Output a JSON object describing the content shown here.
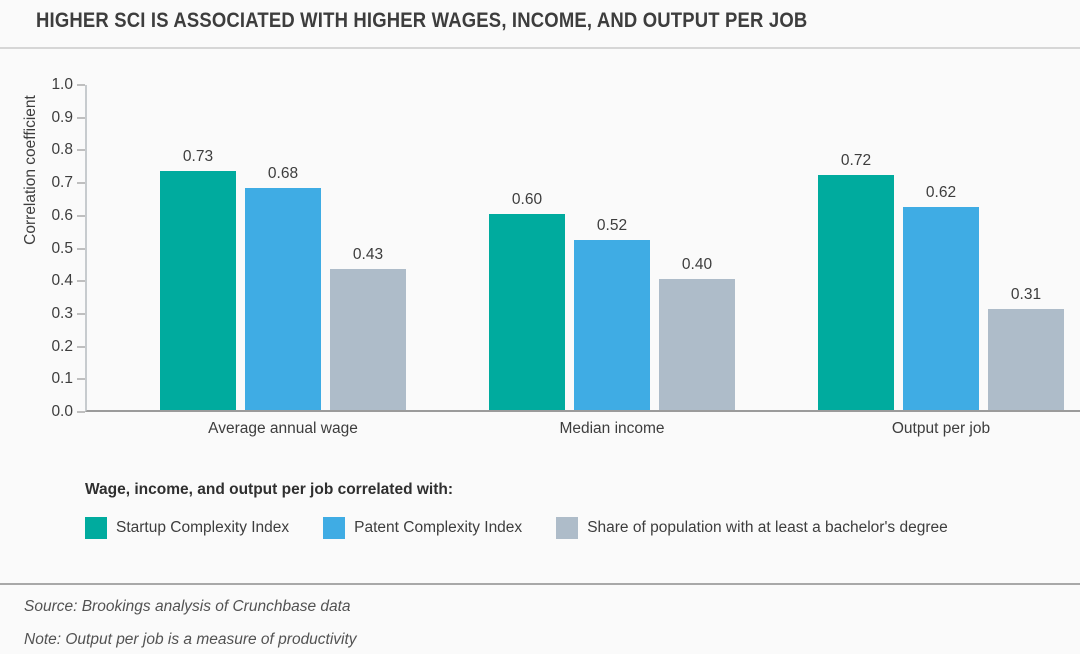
{
  "title": "HIGHER SCI IS ASSOCIATED WITH HIGHER WAGES, INCOME, AND OUTPUT PER JOB",
  "chart_data": {
    "type": "bar",
    "categories": [
      "Average annual wage",
      "Median income",
      "Output per job"
    ],
    "series": [
      {
        "name": "Startup Complexity Index",
        "color": "#00AB9E",
        "values": [
          0.73,
          0.6,
          0.72
        ]
      },
      {
        "name": "Patent Complexity Index",
        "color": "#3FACE4",
        "values": [
          0.68,
          0.52,
          0.62
        ]
      },
      {
        "name": "Share of population with at least a bachelor's degree",
        "color": "#AEBCC9",
        "values": [
          0.43,
          0.4,
          0.31
        ]
      }
    ],
    "value_labels": [
      [
        "0.73",
        "0.60",
        "0.72"
      ],
      [
        "0.68",
        "0.52",
        "0.62"
      ],
      [
        "0.43",
        "0.40",
        "0.31"
      ]
    ],
    "ylabel": "Correlation coefficient",
    "xlabel": "",
    "ylim": [
      0.0,
      1.0
    ],
    "yticks": [
      "1.0",
      "0.9",
      "0.8",
      "0.7",
      "0.6",
      "0.5",
      "0.4",
      "0.3",
      "0.2",
      "0.1",
      "0.0"
    ],
    "grid": false,
    "legend_position": "bottom"
  },
  "legend": {
    "title": "Wage, income, and output per job correlated with:"
  },
  "footer": {
    "source": "Source: Brookings analysis of Crunchbase data",
    "note": "Note: Output per job is a measure of productivity"
  },
  "colors": {
    "background": "#FAFAFA",
    "title_text": "#3D3D3D",
    "series_teal": "#00AB9E",
    "series_blue": "#3FACE4",
    "series_gray": "#AEBCC9",
    "axis_line": "#C7CBCE",
    "baseline": "#9B9B9B",
    "divider_top": "#D6D6D6",
    "divider_bottom": "#A8A8A8",
    "footer_text": "#525252"
  }
}
